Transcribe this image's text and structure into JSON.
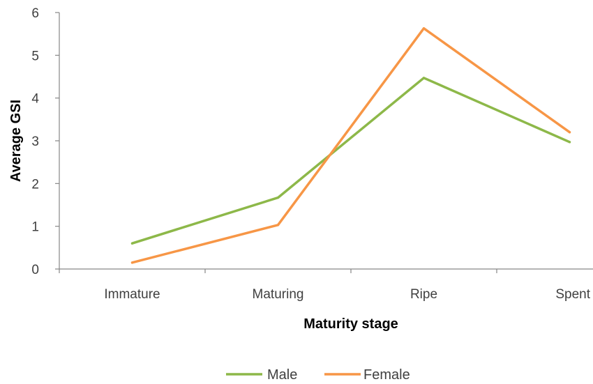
{
  "chart_data": {
    "type": "line",
    "xlabel": "Maturity stage",
    "ylabel": "Average GSI",
    "categories": [
      "Immature",
      "Maturing",
      "Ripe",
      "Spent"
    ],
    "ylim": [
      0,
      6
    ],
    "yticks": [
      0,
      1,
      2,
      3,
      4,
      5,
      6
    ],
    "grid": false,
    "legend_position": "bottom",
    "series": [
      {
        "name": "Male",
        "color": "#8DB849",
        "values": [
          0.6,
          1.67,
          4.47,
          2.97
        ]
      },
      {
        "name": "Female",
        "color": "#F79646",
        "values": [
          0.15,
          1.03,
          5.63,
          3.2
        ]
      }
    ]
  }
}
